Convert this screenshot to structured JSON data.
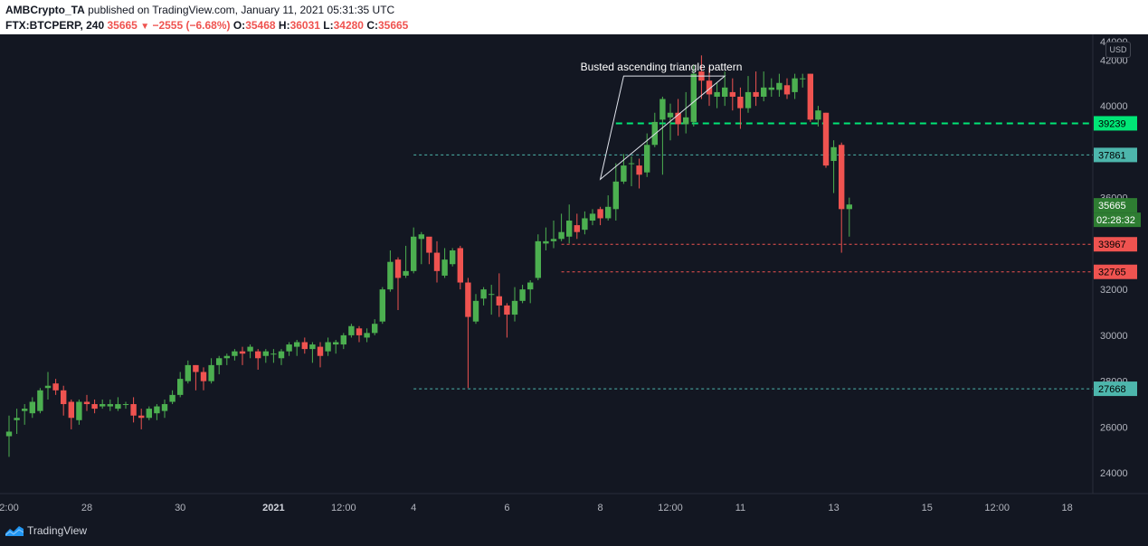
{
  "header": {
    "author": "AMBCrypto_TA",
    "published": " published on TradingView.com, January 11, 2021 05:31:35 UTC",
    "symbol": "FTX:BTCPERP, 240 ",
    "price": "35665",
    "change": " −2555 (−6.68%)",
    "o_label": " O:",
    "o_value": "35468",
    "h_label": " H:",
    "h_value": "36031",
    "l_label": " L:",
    "l_value": "34280",
    "c_label": " C:",
    "c_value": "35665"
  },
  "currency": "USD",
  "annotation": "Busted ascending triangle pattern",
  "countdown": "02:28:32",
  "footer": {
    "brand": "TradingView"
  },
  "colors": {
    "background": "#131722",
    "up": "#4caf50",
    "down": "#ef5350",
    "support_dash": "#4db6ac",
    "resistance_green": "#00e676",
    "stop_red": "#ef5350"
  },
  "chart_data": {
    "type": "candlestick",
    "title": "",
    "xlabel": "",
    "ylabel": "",
    "ylim": [
      23100,
      43000
    ],
    "y_ticks": [
      24000,
      26000,
      28000,
      30000,
      32000,
      34000,
      36000,
      38000,
      40000,
      42000
    ],
    "y_top_partial": "44000",
    "x_ticks": [
      {
        "label": "2:00",
        "bar": 0
      },
      {
        "label": "28",
        "bar": 10
      },
      {
        "label": "30",
        "bar": 22
      },
      {
        "label": "2021",
        "bar": 34,
        "bold": true
      },
      {
        "label": "12:00",
        "bar": 43
      },
      {
        "label": "4",
        "bar": 52
      },
      {
        "label": "6",
        "bar": 64
      },
      {
        "label": "8",
        "bar": 76
      },
      {
        "label": "12:00",
        "bar": 85
      },
      {
        "label": "11",
        "bar": 94
      },
      {
        "label": "13",
        "bar": 106
      },
      {
        "label": "15",
        "bar": 118
      },
      {
        "label": "12:00",
        "bar": 127
      },
      {
        "label": "18",
        "bar": 136
      }
    ],
    "levels": [
      {
        "label": "39239",
        "value": 39239,
        "color": "#00e676",
        "style": "dash-thick",
        "from_bar": 78
      },
      {
        "label": "37861",
        "value": 37861,
        "color": "#4db6ac",
        "style": "dash",
        "from_bar": 52
      },
      {
        "label": "33967",
        "value": 33967,
        "color": "#ef5350",
        "style": "dash",
        "from_bar": 71
      },
      {
        "label": "32765",
        "value": 32765,
        "color": "#ef5350",
        "style": "dash",
        "from_bar": 71
      },
      {
        "label": "27668",
        "value": 27668,
        "color": "#4db6ac",
        "style": "dash",
        "from_bar": 52
      }
    ],
    "last_price": {
      "label": "35665",
      "value": 35665
    },
    "triangle": {
      "points": [
        [
          76,
          36800
        ],
        [
          92,
          41300
        ],
        [
          79,
          41300
        ]
      ]
    },
    "candles": [
      [
        25600,
        25800,
        24700,
        26500
      ],
      [
        26300,
        26400,
        25700,
        26800
      ],
      [
        26700,
        26800,
        26100,
        27000
      ],
      [
        26600,
        27100,
        26400,
        27300
      ],
      [
        26700,
        27600,
        26600,
        27700
      ],
      [
        27700,
        27800,
        27200,
        28400
      ],
      [
        27900,
        27600,
        27400,
        28100
      ],
      [
        27600,
        27000,
        26500,
        27800
      ],
      [
        27100,
        26400,
        25900,
        27200
      ],
      [
        26300,
        27100,
        26100,
        27200
      ],
      [
        27100,
        27000,
        26700,
        27400
      ],
      [
        27000,
        26800,
        26600,
        27200
      ],
      [
        26900,
        27000,
        26800,
        27200
      ],
      [
        26900,
        27000,
        26700,
        27200
      ],
      [
        26800,
        27000,
        26700,
        27300
      ],
      [
        27000,
        27000,
        26800,
        27100
      ],
      [
        27000,
        26500,
        26200,
        27300
      ],
      [
        26500,
        26400,
        25900,
        26800
      ],
      [
        26400,
        26800,
        26300,
        26900
      ],
      [
        26600,
        26900,
        26300,
        27000
      ],
      [
        26700,
        27000,
        26400,
        27200
      ],
      [
        27100,
        27400,
        27000,
        27600
      ],
      [
        27400,
        28100,
        27300,
        28400
      ],
      [
        28000,
        28700,
        27900,
        28900
      ],
      [
        28700,
        28400,
        27600,
        28700
      ],
      [
        28400,
        28000,
        27600,
        28600
      ],
      [
        28000,
        28700,
        27900,
        29000
      ],
      [
        28700,
        29000,
        28300,
        29100
      ],
      [
        29000,
        29100,
        28700,
        29200
      ],
      [
        29100,
        29300,
        28900,
        29400
      ],
      [
        29300,
        29200,
        28700,
        29500
      ],
      [
        29300,
        29500,
        29000,
        29600
      ],
      [
        29300,
        29000,
        28500,
        29400
      ],
      [
        29100,
        29300,
        28800,
        29400
      ],
      [
        29200,
        29200,
        28800,
        29400
      ],
      [
        29000,
        29300,
        28700,
        29400
      ],
      [
        29300,
        29600,
        29100,
        29700
      ],
      [
        29500,
        29700,
        29100,
        29800
      ],
      [
        29700,
        29400,
        29200,
        29900
      ],
      [
        29400,
        29600,
        28800,
        29700
      ],
      [
        29500,
        29100,
        28600,
        29700
      ],
      [
        29300,
        29700,
        29100,
        29900
      ],
      [
        29600,
        29700,
        29200,
        29800
      ],
      [
        29600,
        30000,
        29400,
        30100
      ],
      [
        30000,
        30400,
        29900,
        30500
      ],
      [
        30300,
        30000,
        29700,
        30400
      ],
      [
        29900,
        30100,
        29700,
        30300
      ],
      [
        30100,
        30500,
        30000,
        30700
      ],
      [
        30600,
        32000,
        30500,
        32100
      ],
      [
        32000,
        33200,
        31900,
        33700
      ],
      [
        33300,
        32500,
        31100,
        33400
      ],
      [
        32600,
        32800,
        32500,
        33900
      ],
      [
        32800,
        34300,
        32700,
        34700
      ],
      [
        34200,
        34400,
        33100,
        34500
      ],
      [
        34300,
        33600,
        33100,
        34200
      ],
      [
        33600,
        32800,
        32300,
        34100
      ],
      [
        32600,
        33300,
        32500,
        33800
      ],
      [
        33100,
        33700,
        33000,
        33800
      ],
      [
        33800,
        32300,
        32000,
        33900
      ],
      [
        32300,
        30800,
        27700,
        32500
      ],
      [
        30600,
        31500,
        30500,
        31800
      ],
      [
        31600,
        32000,
        31300,
        32100
      ],
      [
        31800,
        31800,
        30900,
        32200
      ],
      [
        31700,
        31300,
        30800,
        32700
      ],
      [
        31300,
        30900,
        29900,
        31400
      ],
      [
        30900,
        31500,
        30600,
        32100
      ],
      [
        31500,
        32000,
        31400,
        32200
      ],
      [
        32000,
        32300,
        31400,
        32400
      ],
      [
        32500,
        34100,
        32400,
        34400
      ],
      [
        34000,
        34100,
        33700,
        34700
      ],
      [
        34100,
        34200,
        33800,
        35000
      ],
      [
        34200,
        34500,
        34100,
        35300
      ],
      [
        34300,
        35000,
        34000,
        35700
      ],
      [
        34800,
        34500,
        34200,
        35300
      ],
      [
        34600,
        35100,
        34400,
        35400
      ],
      [
        35000,
        35300,
        34800,
        35500
      ],
      [
        35500,
        35100,
        34800,
        35600
      ],
      [
        35100,
        35600,
        35000,
        36100
      ],
      [
        35500,
        36700,
        35000,
        37500
      ],
      [
        36700,
        37400,
        36600,
        37900
      ],
      [
        37500,
        37500,
        36500,
        37800
      ],
      [
        37400,
        37000,
        36400,
        37700
      ],
      [
        37100,
        38300,
        36900,
        38800
      ],
      [
        38300,
        39300,
        38200,
        39700
      ],
      [
        39400,
        40300,
        37000,
        40400
      ],
      [
        39500,
        39700,
        38500,
        40100
      ],
      [
        39700,
        39200,
        38700,
        40300
      ],
      [
        39200,
        39500,
        38800,
        40600
      ],
      [
        39300,
        41400,
        39100,
        41800
      ],
      [
        41500,
        41100,
        40300,
        42200
      ],
      [
        41100,
        40500,
        40000,
        41700
      ],
      [
        40400,
        40600,
        39900,
        41000
      ],
      [
        40400,
        40800,
        40000,
        41500
      ],
      [
        40600,
        40400,
        39800,
        41200
      ],
      [
        40400,
        39900,
        39000,
        40800
      ],
      [
        39900,
        40600,
        39700,
        41300
      ],
      [
        40600,
        40400,
        40000,
        41500
      ],
      [
        40400,
        40800,
        40200,
        41500
      ],
      [
        40700,
        40800,
        40400,
        41200
      ],
      [
        40700,
        41000,
        40400,
        41400
      ],
      [
        40900,
        40500,
        40300,
        41200
      ],
      [
        40600,
        41200,
        40300,
        41400
      ],
      [
        41200,
        41200,
        40800,
        41400
      ],
      [
        41400,
        39400,
        39300,
        41400
      ],
      [
        39400,
        39800,
        39100,
        40000
      ],
      [
        39700,
        37400,
        37300,
        39700
      ],
      [
        37600,
        38200,
        36200,
        38500
      ],
      [
        38300,
        35500,
        33600,
        38400
      ],
      [
        35500,
        35700,
        34300,
        36000
      ]
    ]
  }
}
